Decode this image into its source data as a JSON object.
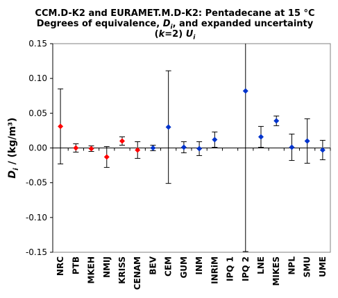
{
  "chart_data": {
    "type": "scatter",
    "title_lines": [
      "CCM.D-K2 and EURAMET.M.D-K2: Pentadecane at 15 °C",
      "Degrees of equivalence, D_i, and expanded uncertainty",
      "(k=2) U_i"
    ],
    "ylabel": "D_i / (kg/m³)",
    "ylim": [
      -0.15,
      0.15
    ],
    "yticks": [
      "0.15",
      "0.10",
      "0.05",
      "0.00",
      "-0.05",
      "-0.10",
      "-0.15"
    ],
    "ytick_values": [
      0.15,
      0.1,
      0.05,
      0.0,
      -0.05,
      -0.1,
      -0.15
    ],
    "grid": false,
    "categories": [
      "NRC",
      "PTB",
      "MKEH",
      "NMIJ",
      "KRISS",
      "CENAM",
      "BEV",
      "CEM",
      "GUM",
      "INM",
      "INRiM",
      "IPQ 1",
      "IPQ 2",
      "LNE",
      "MIKES",
      "NPL",
      "SMU",
      "UME"
    ],
    "values": [
      0.031,
      0.0,
      -0.001,
      -0.013,
      0.01,
      -0.003,
      0.0,
      0.03,
      0.001,
      -0.001,
      0.012,
      null,
      0.082,
      0.016,
      0.039,
      0.001,
      0.01,
      -0.003
    ],
    "uncertainties": [
      0.054,
      0.006,
      0.004,
      0.015,
      0.006,
      0.012,
      0.004,
      0.081,
      0.008,
      0.01,
      0.011,
      null,
      0.231,
      0.015,
      0.007,
      0.019,
      0.032,
      0.014
    ],
    "point_colors": [
      "#ff0000",
      "#ff0000",
      "#ff0000",
      "#ff0000",
      "#ff0000",
      "#ff0000",
      "#0033cc",
      "#0033cc",
      "#0033cc",
      "#0033cc",
      "#0033cc",
      "#0033cc",
      "#0033cc",
      "#0033cc",
      "#0033cc",
      "#0033cc",
      "#0033cc",
      "#0033cc"
    ]
  }
}
